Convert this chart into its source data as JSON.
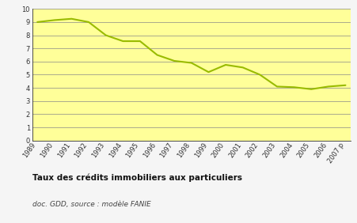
{
  "x_labels": [
    "1989",
    "1990",
    "1991",
    "1992",
    "1993",
    "1994",
    "1995",
    "1996",
    "1997",
    "1998",
    "1999",
    "2000",
    "2001",
    "2002",
    "2003",
    "2004",
    "2005",
    "2006",
    "2007 p"
  ],
  "y_values": [
    9.0,
    9.15,
    9.25,
    9.0,
    8.0,
    7.55,
    7.55,
    6.5,
    6.05,
    5.9,
    5.2,
    5.75,
    5.55,
    5.0,
    4.1,
    4.05,
    3.9,
    4.1,
    4.2
  ],
  "line_color": "#99bb00",
  "chart_bg": "#ffff99",
  "outer_bg": "#f5f5f5",
  "title": "Taux des crédits immobiliers aux particuliers",
  "subtitle": "doc. GDD, source : modèle FANIE",
  "ylim": [
    0,
    10
  ],
  "yticks": [
    0,
    1,
    2,
    3,
    4,
    5,
    6,
    7,
    8,
    9,
    10
  ],
  "grid_color": "#888888",
  "axis_color": "#333333",
  "title_fontsize": 7.5,
  "subtitle_fontsize": 6.5,
  "tick_fontsize": 6.0,
  "linewidth": 1.5
}
